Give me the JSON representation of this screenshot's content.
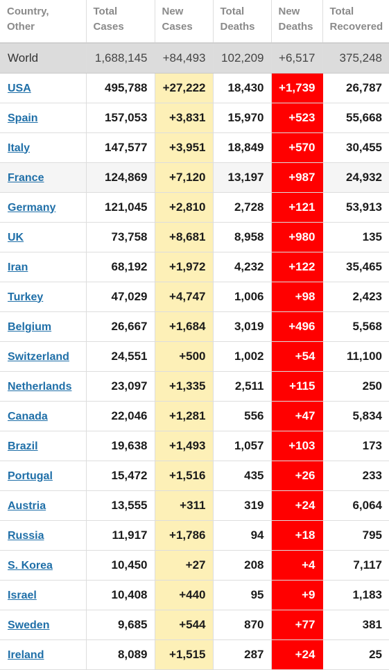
{
  "headers": [
    [
      "Country,",
      "Other"
    ],
    [
      "Total",
      "Cases"
    ],
    [
      "New",
      "Cases"
    ],
    [
      "Total",
      "Deaths"
    ],
    [
      "New",
      "Deaths"
    ],
    [
      "Total",
      "Recovered"
    ]
  ],
  "colors": {
    "new_cases_bg": "#fdf0b7",
    "new_deaths_bg": "#ff0000",
    "link": "#1f6fa8",
    "world_row_bg": "#dcdcdc"
  },
  "world": [
    "World",
    "1,688,145",
    "+84,493",
    "102,209",
    "+6,517",
    "375,248"
  ],
  "rows": [
    [
      "USA",
      "495,788",
      "+27,222",
      "18,430",
      "+1,739",
      "26,787"
    ],
    [
      "Spain",
      "157,053",
      "+3,831",
      "15,970",
      "+523",
      "55,668"
    ],
    [
      "Italy",
      "147,577",
      "+3,951",
      "18,849",
      "+570",
      "30,455"
    ],
    [
      "France",
      "124,869",
      "+7,120",
      "13,197",
      "+987",
      "24,932"
    ],
    [
      "Germany",
      "121,045",
      "+2,810",
      "2,728",
      "+121",
      "53,913"
    ],
    [
      "UK",
      "73,758",
      "+8,681",
      "8,958",
      "+980",
      "135"
    ],
    [
      "Iran",
      "68,192",
      "+1,972",
      "4,232",
      "+122",
      "35,465"
    ],
    [
      "Turkey",
      "47,029",
      "+4,747",
      "1,006",
      "+98",
      "2,423"
    ],
    [
      "Belgium",
      "26,667",
      "+1,684",
      "3,019",
      "+496",
      "5,568"
    ],
    [
      "Switzerland",
      "24,551",
      "+500",
      "1,002",
      "+54",
      "11,100"
    ],
    [
      "Netherlands",
      "23,097",
      "+1,335",
      "2,511",
      "+115",
      "250"
    ],
    [
      "Canada",
      "22,046",
      "+1,281",
      "556",
      "+47",
      "5,834"
    ],
    [
      "Brazil",
      "19,638",
      "+1,493",
      "1,057",
      "+103",
      "173"
    ],
    [
      "Portugal",
      "15,472",
      "+1,516",
      "435",
      "+26",
      "233"
    ],
    [
      "Austria",
      "13,555",
      "+311",
      "319",
      "+24",
      "6,064"
    ],
    [
      "Russia",
      "11,917",
      "+1,786",
      "94",
      "+18",
      "795"
    ],
    [
      "S. Korea",
      "10,450",
      "+27",
      "208",
      "+4",
      "7,117"
    ],
    [
      "Israel",
      "10,408",
      "+440",
      "95",
      "+9",
      "1,183"
    ],
    [
      "Sweden",
      "9,685",
      "+544",
      "870",
      "+77",
      "381"
    ],
    [
      "Ireland",
      "8,089",
      "+1,515",
      "287",
      "+24",
      "25"
    ]
  ]
}
